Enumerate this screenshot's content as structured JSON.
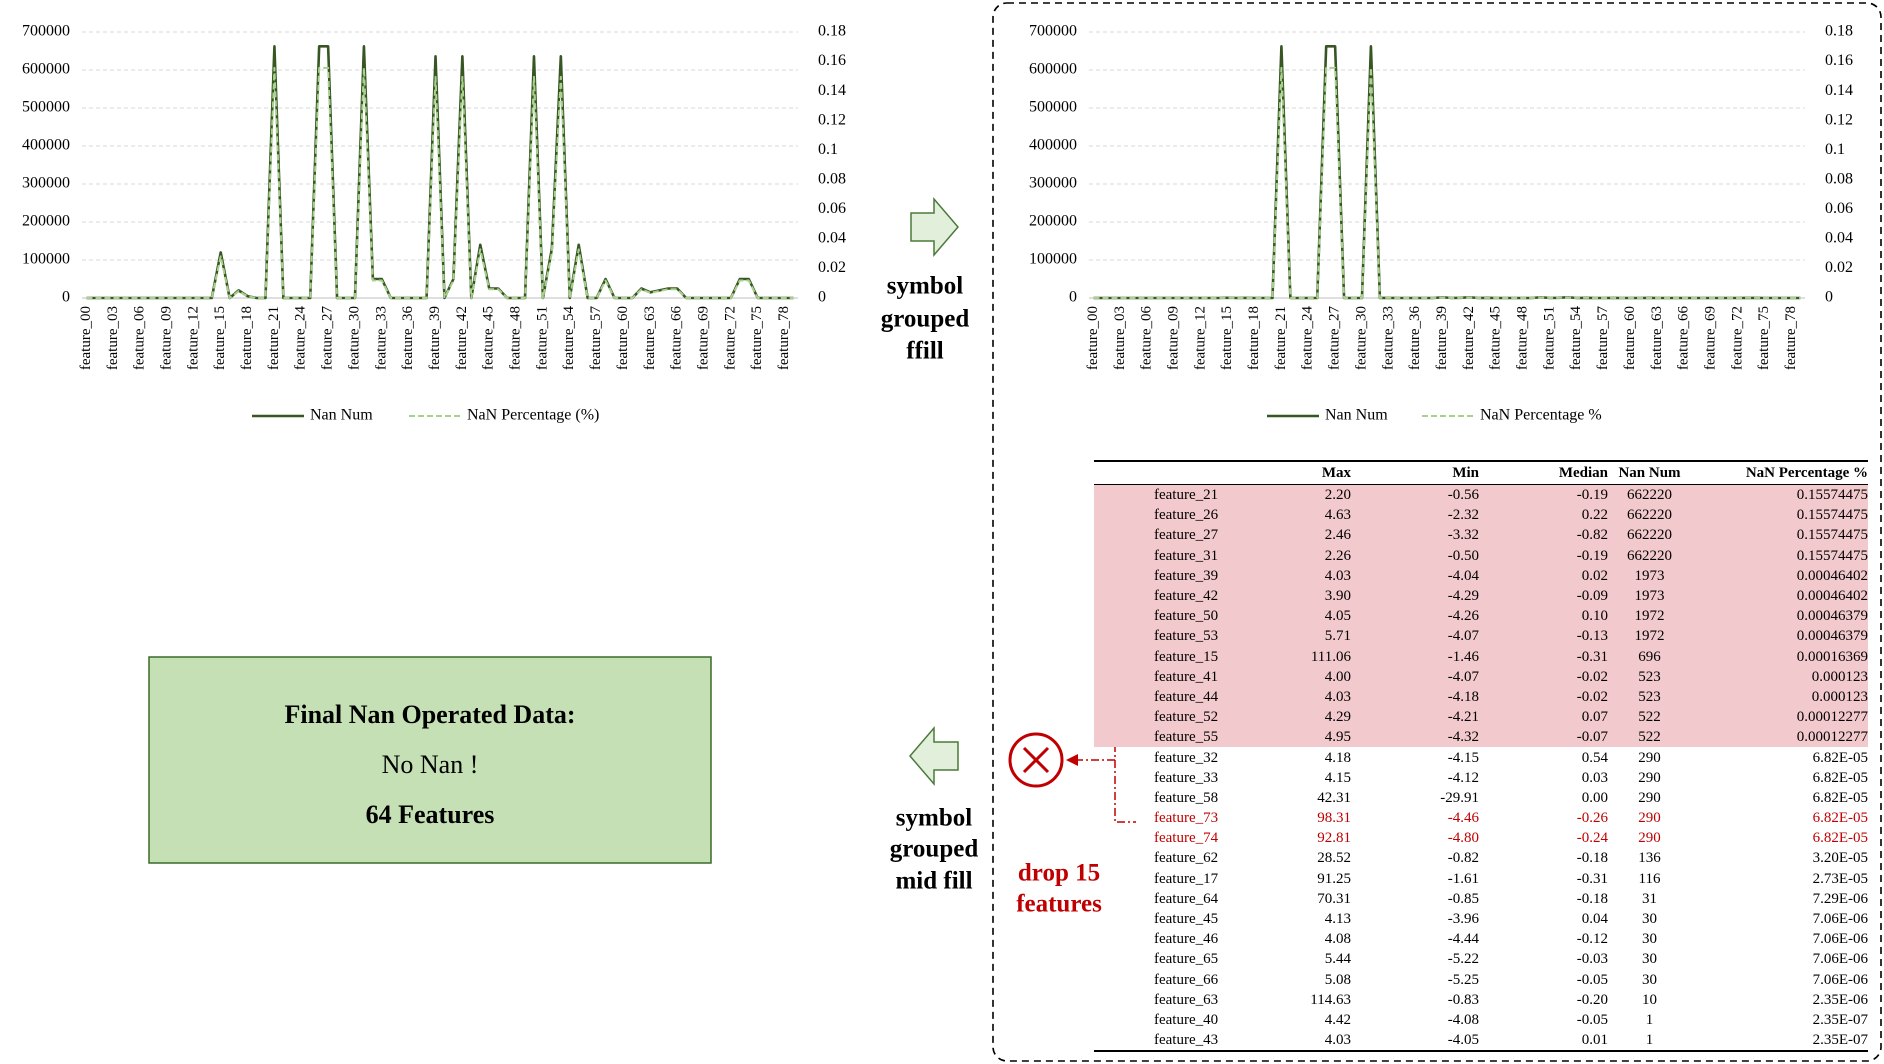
{
  "chart_data": [
    {
      "type": "line",
      "categories": [
        "feature_00",
        null,
        null,
        "feature_03",
        null,
        null,
        "feature_06",
        null,
        null,
        "feature_09",
        null,
        null,
        "feature_12",
        null,
        null,
        "feature_15",
        null,
        null,
        "feature_18",
        null,
        null,
        "feature_21",
        null,
        null,
        "feature_24",
        null,
        null,
        "feature_27",
        null,
        null,
        "feature_30",
        null,
        null,
        "feature_33",
        null,
        null,
        "feature_36",
        null,
        null,
        "feature_39",
        null,
        null,
        "feature_42",
        null,
        null,
        "feature_45",
        null,
        null,
        "feature_48",
        null,
        null,
        "feature_51",
        null,
        null,
        "feature_54",
        null,
        null,
        "feature_57",
        null,
        null,
        "feature_60",
        null,
        null,
        "feature_63",
        null,
        null,
        "feature_66",
        null,
        null,
        "feature_69",
        null,
        null,
        "feature_72",
        null,
        null,
        "feature_75",
        null,
        null,
        "feature_78",
        null
      ],
      "series": [
        {
          "name": "Nan Num",
          "color": "#375623",
          "values": [
            0,
            0,
            0,
            0,
            0,
            0,
            0,
            0,
            0,
            0,
            0,
            0,
            0,
            0,
            0,
            120000,
            0,
            20000,
            5000,
            0,
            0,
            662220,
            0,
            0,
            0,
            0,
            662220,
            662220,
            0,
            0,
            0,
            662220,
            50000,
            50000,
            0,
            0,
            0,
            0,
            0,
            636000,
            0,
            50000,
            636000,
            0,
            140000,
            25000,
            25000,
            0,
            0,
            0,
            636000,
            0,
            130000,
            636000,
            0,
            140000,
            0,
            0,
            50000,
            0,
            0,
            0,
            25000,
            15000,
            20000,
            25000,
            25000,
            0,
            0,
            0,
            0,
            0,
            0,
            50000,
            50000,
            0,
            0,
            0,
            0,
            0
          ]
        },
        {
          "name": "NaN Percentage (%)",
          "color": "#a9d18e",
          "axis": "y2",
          "dashed": true,
          "values": [
            0,
            0,
            0,
            0,
            0,
            0,
            0,
            0,
            0,
            0,
            0,
            0,
            0,
            0,
            0,
            0.0282,
            0,
            0.0047,
            0.0012,
            0,
            0,
            0.1557,
            0,
            0,
            0,
            0,
            0.1557,
            0.1557,
            0,
            0,
            0,
            0.1557,
            0.0118,
            0.0118,
            0,
            0,
            0,
            0,
            0,
            0.1496,
            0,
            0.0118,
            0.1496,
            0,
            0.0329,
            0.0059,
            0.0059,
            0,
            0,
            0,
            0.1496,
            0,
            0.0306,
            0.1496,
            0,
            0.0329,
            0,
            0,
            0.0118,
            0,
            0,
            0,
            0.0059,
            0.0035,
            0.0047,
            0.0059,
            0.0059,
            0,
            0,
            0,
            0,
            0,
            0,
            0.0118,
            0.0118,
            0,
            0,
            0,
            0,
            0
          ]
        }
      ],
      "ylim": [
        0,
        700000
      ],
      "yticks": [
        0,
        100000,
        200000,
        300000,
        400000,
        500000,
        600000,
        700000
      ],
      "y2lim": [
        0,
        0.18
      ],
      "y2ticks": [
        0,
        0.02,
        0.04,
        0.06,
        0.08,
        0.1,
        0.12,
        0.14,
        0.16,
        0.18
      ],
      "grid": true,
      "legend": "bottom"
    },
    {
      "type": "line",
      "categories": [
        "feature_00",
        null,
        null,
        "feature_03",
        null,
        null,
        "feature_06",
        null,
        null,
        "feature_09",
        null,
        null,
        "feature_12",
        null,
        null,
        "feature_15",
        null,
        null,
        "feature_18",
        null,
        null,
        "feature_21",
        null,
        null,
        "feature_24",
        null,
        null,
        "feature_27",
        null,
        null,
        "feature_30",
        null,
        null,
        "feature_33",
        null,
        null,
        "feature_36",
        null,
        null,
        "feature_39",
        null,
        null,
        "feature_42",
        null,
        null,
        "feature_45",
        null,
        null,
        "feature_48",
        null,
        null,
        "feature_51",
        null,
        null,
        "feature_54",
        null,
        null,
        "feature_57",
        null,
        null,
        "feature_60",
        null,
        null,
        "feature_63",
        null,
        null,
        "feature_66",
        null,
        null,
        "feature_69",
        null,
        null,
        "feature_72",
        null,
        null,
        "feature_75",
        null,
        null,
        "feature_78",
        null
      ],
      "series": [
        {
          "name": "Nan Num",
          "color": "#375623",
          "values": [
            0,
            0,
            0,
            0,
            0,
            0,
            0,
            0,
            0,
            0,
            0,
            0,
            0,
            0,
            0,
            696,
            0,
            116,
            0,
            0,
            0,
            662220,
            0,
            0,
            0,
            0,
            662220,
            662220,
            0,
            0,
            0,
            662220,
            290,
            290,
            0,
            0,
            0,
            0,
            0,
            1973,
            1,
            523,
            1973,
            1,
            523,
            30,
            30,
            0,
            0,
            0,
            1972,
            0,
            522,
            1972,
            0,
            522,
            0,
            0,
            290,
            0,
            0,
            0,
            136,
            10,
            31,
            30,
            30,
            0,
            0,
            0,
            0,
            0,
            0,
            290,
            290,
            0,
            0,
            0,
            0,
            0
          ]
        },
        {
          "name": "NaN Percentage %",
          "color": "#a9d18e",
          "axis": "y2",
          "dashed": true,
          "values": [
            0,
            0,
            0,
            0,
            0,
            0,
            0,
            0,
            0,
            0,
            0,
            0,
            0,
            0,
            0,
            0.00016369,
            0,
            2.73e-05,
            0,
            0,
            0,
            0.15574475,
            0,
            0,
            0,
            0,
            0.15574475,
            0.15574475,
            0,
            0,
            0,
            0.15574475,
            6.82e-05,
            6.82e-05,
            0,
            0,
            0,
            0,
            0,
            0.00046402,
            2.35e-07,
            0.000123,
            0.00046402,
            2.35e-07,
            0.000123,
            7.06e-06,
            7.06e-06,
            0,
            0,
            0,
            0.00046379,
            0,
            0.00012277,
            0.00046379,
            0,
            0.00012277,
            0,
            0,
            6.82e-05,
            0,
            0,
            0,
            3.2e-05,
            2.35e-06,
            7.29e-06,
            7.06e-06,
            7.06e-06,
            0,
            0,
            0,
            0,
            0,
            0,
            6.82e-05,
            6.82e-05,
            0,
            0,
            0,
            0,
            0
          ]
        }
      ],
      "ylim": [
        0,
        700000
      ],
      "yticks": [
        0,
        100000,
        200000,
        300000,
        400000,
        500000,
        600000,
        700000
      ],
      "y2lim": [
        0,
        0.18
      ],
      "y2ticks": [
        0,
        0.02,
        0.04,
        0.06,
        0.08,
        0.1,
        0.12,
        0.14,
        0.16,
        0.18
      ],
      "grid": true,
      "legend": "bottom"
    }
  ],
  "labels": {
    "ffill": [
      "symbol",
      "grouped",
      "ffill"
    ],
    "mid_fill": [
      "symbol",
      "grouped",
      "mid fill"
    ],
    "drop": [
      "drop 15",
      "features"
    ]
  },
  "final_box": {
    "title": "Final Nan Operated Data:",
    "line1": "No Nan !",
    "line2": "64 Features"
  },
  "table": {
    "header": [
      "Max",
      "Min",
      "Median",
      "Nan Num",
      "NaN Percentage %"
    ],
    "rows": [
      [
        "feature_21",
        "2.20",
        "-0.56",
        "-0.19",
        "662220",
        "0.15574475"
      ],
      [
        "feature_26",
        "4.63",
        "-2.32",
        "0.22",
        "662220",
        "0.15574475"
      ],
      [
        "feature_27",
        "2.46",
        "-3.32",
        "-0.82",
        "662220",
        "0.15574475"
      ],
      [
        "feature_31",
        "2.26",
        "-0.50",
        "-0.19",
        "662220",
        "0.15574475"
      ],
      [
        "feature_39",
        "4.03",
        "-4.04",
        "0.02",
        "1973",
        "0.00046402"
      ],
      [
        "feature_42",
        "3.90",
        "-4.29",
        "-0.09",
        "1973",
        "0.00046402"
      ],
      [
        "feature_50",
        "4.05",
        "-4.26",
        "0.10",
        "1972",
        "0.00046379"
      ],
      [
        "feature_53",
        "5.71",
        "-4.07",
        "-0.13",
        "1972",
        "0.00046379"
      ],
      [
        "feature_15",
        "111.06",
        "-1.46",
        "-0.31",
        "696",
        "0.00016369"
      ],
      [
        "feature_41",
        "4.00",
        "-4.07",
        "-0.02",
        "523",
        "0.000123"
      ],
      [
        "feature_44",
        "4.03",
        "-4.18",
        "-0.02",
        "523",
        "0.000123"
      ],
      [
        "feature_52",
        "4.29",
        "-4.21",
        "0.07",
        "522",
        "0.00012277"
      ],
      [
        "feature_55",
        "4.95",
        "-4.32",
        "-0.07",
        "522",
        "0.00012277"
      ],
      [
        "feature_32",
        "4.18",
        "-4.15",
        "0.54",
        "290",
        "6.82E-05"
      ],
      [
        "feature_33",
        "4.15",
        "-4.12",
        "0.03",
        "290",
        "6.82E-05"
      ],
      [
        "feature_58",
        "42.31",
        "-29.91",
        "0.00",
        "290",
        "6.82E-05"
      ],
      [
        "feature_73",
        "98.31",
        "-4.46",
        "-0.26",
        "290",
        "6.82E-05"
      ],
      [
        "feature_74",
        "92.81",
        "-4.80",
        "-0.24",
        "290",
        "6.82E-05"
      ],
      [
        "feature_62",
        "28.52",
        "-0.82",
        "-0.18",
        "136",
        "3.20E-05"
      ],
      [
        "feature_17",
        "91.25",
        "-1.61",
        "-0.31",
        "116",
        "2.73E-05"
      ],
      [
        "feature_64",
        "70.31",
        "-0.85",
        "-0.18",
        "31",
        "7.29E-06"
      ],
      [
        "feature_45",
        "4.13",
        "-3.96",
        "0.04",
        "30",
        "7.06E-06"
      ],
      [
        "feature_46",
        "4.08",
        "-4.44",
        "-0.12",
        "30",
        "7.06E-06"
      ],
      [
        "feature_65",
        "5.44",
        "-5.22",
        "-0.03",
        "30",
        "7.06E-06"
      ],
      [
        "feature_66",
        "5.08",
        "-5.25",
        "-0.05",
        "30",
        "7.06E-06"
      ],
      [
        "feature_63",
        "114.63",
        "-0.83",
        "-0.20",
        "10",
        "2.35E-06"
      ],
      [
        "feature_40",
        "4.42",
        "-4.08",
        "-0.05",
        "1",
        "2.35E-07"
      ],
      [
        "feature_43",
        "4.03",
        "-4.05",
        "0.01",
        "1",
        "2.35E-07"
      ]
    ]
  }
}
